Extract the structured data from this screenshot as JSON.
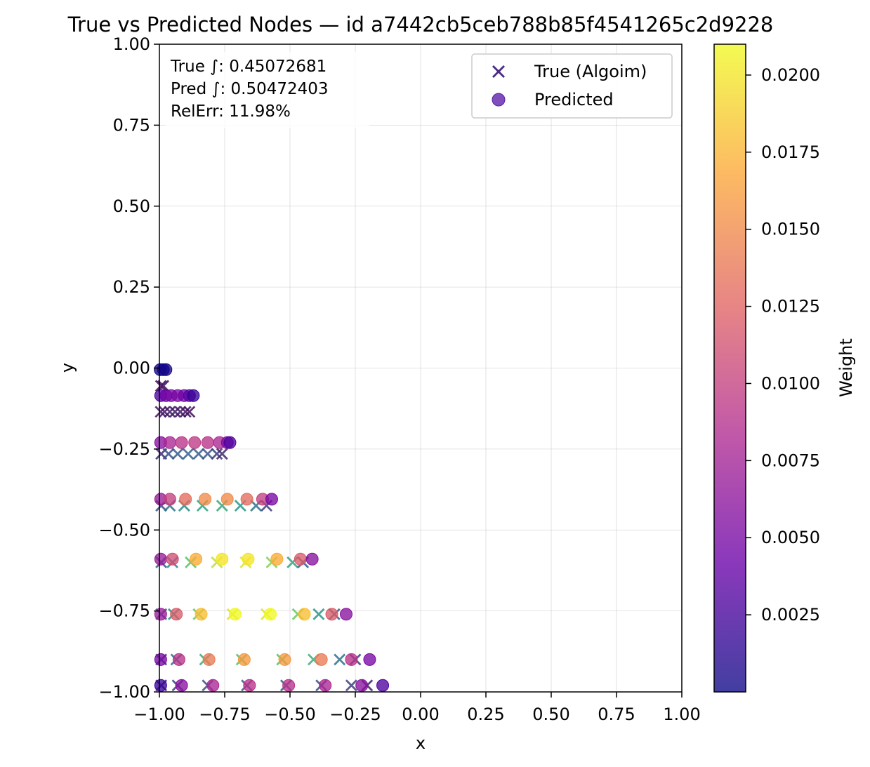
{
  "chart_data": {
    "type": "scatter",
    "title": "True vs Predicted Nodes — id a7442cb5ceb788b85f4541265c2d9228",
    "xlabel": "x",
    "ylabel": "y",
    "xlim": [
      -1.0,
      1.0
    ],
    "ylim": [
      -1.0,
      1.0
    ],
    "x_ticks": [
      "−1.00",
      "−0.75",
      "−0.50",
      "−0.25",
      "0.00",
      "0.25",
      "0.50",
      "0.75",
      "1.00"
    ],
    "y_ticks": [
      "−1.00",
      "−0.75",
      "−0.50",
      "−0.25",
      "0.00",
      "0.25",
      "0.50",
      "0.75",
      "1.00"
    ],
    "grid": true,
    "legend_position": "top-right",
    "legend": [
      "True (Algoim)",
      "Predicted"
    ],
    "annotation": [
      "True ∫: 0.45072681",
      "Pred ∫: 0.50472403",
      "RelErr: 11.98%"
    ],
    "colorbar": {
      "label": "Weight",
      "range": [
        0.0,
        0.021
      ],
      "ticks": [
        "0.0025",
        "0.0050",
        "0.0075",
        "0.0100",
        "0.0125",
        "0.0150",
        "0.0175",
        "0.0200"
      ],
      "tick_values": [
        0.0025,
        0.005,
        0.0075,
        0.01,
        0.0125,
        0.015,
        0.0175,
        0.02
      ],
      "colormap": [
        "#0d0887",
        "#6a00a8",
        "#b12a90",
        "#e16462",
        "#fca636",
        "#f0f921"
      ]
    },
    "series": [
      {
        "name": "True (Algoim)",
        "marker": "x",
        "colormap": [
          "#440154",
          "#3b528b",
          "#21918c",
          "#5ec962",
          "#fde725"
        ],
        "range": [
          0.0,
          0.021
        ],
        "points": [
          [
            -0.994,
            -0.055,
            0.0008
          ],
          [
            -0.985,
            -0.055,
            0.0009
          ],
          [
            -0.995,
            -0.135,
            0.0012
          ],
          [
            -0.98,
            -0.135,
            0.0014
          ],
          [
            -0.96,
            -0.135,
            0.0016
          ],
          [
            -0.94,
            -0.135,
            0.0016
          ],
          [
            -0.92,
            -0.135,
            0.0015
          ],
          [
            -0.9,
            -0.135,
            0.0012
          ],
          [
            -0.885,
            -0.135,
            0.0008
          ],
          [
            -0.993,
            -0.265,
            0.003
          ],
          [
            -0.965,
            -0.265,
            0.005
          ],
          [
            -0.93,
            -0.265,
            0.006
          ],
          [
            -0.89,
            -0.265,
            0.0065
          ],
          [
            -0.85,
            -0.265,
            0.0062
          ],
          [
            -0.815,
            -0.265,
            0.0055
          ],
          [
            -0.78,
            -0.265,
            0.004
          ],
          [
            -0.76,
            -0.265,
            0.0025
          ],
          [
            -0.993,
            -0.425,
            0.005
          ],
          [
            -0.96,
            -0.425,
            0.008
          ],
          [
            -0.905,
            -0.425,
            0.01
          ],
          [
            -0.835,
            -0.425,
            0.012
          ],
          [
            -0.76,
            -0.425,
            0.0125
          ],
          [
            -0.69,
            -0.425,
            0.011
          ],
          [
            -0.63,
            -0.425,
            0.008
          ],
          [
            -0.59,
            -0.425,
            0.004
          ],
          [
            -0.993,
            -0.6,
            0.006
          ],
          [
            -0.95,
            -0.6,
            0.01
          ],
          [
            -0.88,
            -0.6,
            0.015
          ],
          [
            -0.78,
            -0.6,
            0.019
          ],
          [
            -0.67,
            -0.6,
            0.02
          ],
          [
            -0.57,
            -0.6,
            0.017
          ],
          [
            -0.49,
            -0.6,
            0.012
          ],
          [
            -0.45,
            -0.6,
            0.006
          ],
          [
            -0.993,
            -0.76,
            0.006
          ],
          [
            -0.945,
            -0.76,
            0.011
          ],
          [
            -0.85,
            -0.76,
            0.016
          ],
          [
            -0.72,
            -0.76,
            0.02
          ],
          [
            -0.59,
            -0.76,
            0.02
          ],
          [
            -0.47,
            -0.76,
            0.016
          ],
          [
            -0.39,
            -0.76,
            0.011
          ],
          [
            -0.33,
            -0.76,
            0.006
          ],
          [
            -0.993,
            -0.9,
            0.004
          ],
          [
            -0.935,
            -0.9,
            0.008
          ],
          [
            -0.825,
            -0.9,
            0.013
          ],
          [
            -0.685,
            -0.9,
            0.015
          ],
          [
            -0.53,
            -0.9,
            0.015
          ],
          [
            -0.41,
            -0.9,
            0.013
          ],
          [
            -0.31,
            -0.9,
            0.008
          ],
          [
            -0.25,
            -0.9,
            0.004
          ],
          [
            -0.993,
            -0.98,
            0.002
          ],
          [
            -0.93,
            -0.98,
            0.004
          ],
          [
            -0.815,
            -0.98,
            0.005
          ],
          [
            -0.665,
            -0.98,
            0.0055
          ],
          [
            -0.515,
            -0.98,
            0.0055
          ],
          [
            -0.38,
            -0.98,
            0.005
          ],
          [
            -0.265,
            -0.98,
            0.004
          ],
          [
            -0.205,
            -0.98,
            0.002
          ]
        ]
      },
      {
        "name": "Predicted",
        "marker": "o",
        "colormap": [
          "#0d0887",
          "#6a00a8",
          "#b12a90",
          "#e16462",
          "#fca636",
          "#f0f921"
        ],
        "range": [
          0.0,
          0.021
        ],
        "points": [
          [
            -0.997,
            -0.005,
            0.0003
          ],
          [
            -0.985,
            -0.005,
            0.0004
          ],
          [
            -0.975,
            -0.005,
            0.0003
          ],
          [
            -0.995,
            -0.085,
            0.003
          ],
          [
            -0.975,
            -0.085,
            0.0045
          ],
          [
            -0.955,
            -0.085,
            0.005
          ],
          [
            -0.93,
            -0.085,
            0.005
          ],
          [
            -0.905,
            -0.085,
            0.0045
          ],
          [
            -0.885,
            -0.085,
            0.0035
          ],
          [
            -0.87,
            -0.085,
            0.002
          ],
          [
            -0.995,
            -0.23,
            0.006
          ],
          [
            -0.96,
            -0.23,
            0.008
          ],
          [
            -0.915,
            -0.23,
            0.009
          ],
          [
            -0.865,
            -0.23,
            0.0095
          ],
          [
            -0.815,
            -0.23,
            0.009
          ],
          [
            -0.77,
            -0.23,
            0.008
          ],
          [
            -0.74,
            -0.23,
            0.0055
          ],
          [
            -0.73,
            -0.23,
            0.003
          ],
          [
            -0.995,
            -0.405,
            0.007
          ],
          [
            -0.96,
            -0.405,
            0.01
          ],
          [
            -0.9,
            -0.405,
            0.013
          ],
          [
            -0.825,
            -0.405,
            0.015
          ],
          [
            -0.74,
            -0.405,
            0.015
          ],
          [
            -0.665,
            -0.405,
            0.013
          ],
          [
            -0.605,
            -0.405,
            0.01
          ],
          [
            -0.57,
            -0.405,
            0.005
          ],
          [
            -0.995,
            -0.59,
            0.007
          ],
          [
            -0.95,
            -0.59,
            0.011
          ],
          [
            -0.86,
            -0.59,
            0.017
          ],
          [
            -0.76,
            -0.59,
            0.02
          ],
          [
            -0.66,
            -0.59,
            0.02
          ],
          [
            -0.55,
            -0.59,
            0.017
          ],
          [
            -0.46,
            -0.59,
            0.012
          ],
          [
            -0.415,
            -0.59,
            0.006
          ],
          [
            -0.995,
            -0.76,
            0.007
          ],
          [
            -0.935,
            -0.76,
            0.012
          ],
          [
            -0.84,
            -0.76,
            0.018
          ],
          [
            -0.71,
            -0.76,
            0.021
          ],
          [
            -0.575,
            -0.76,
            0.021
          ],
          [
            -0.445,
            -0.76,
            0.018
          ],
          [
            -0.34,
            -0.76,
            0.012
          ],
          [
            -0.285,
            -0.76,
            0.006
          ],
          [
            -0.995,
            -0.9,
            0.005
          ],
          [
            -0.925,
            -0.9,
            0.009
          ],
          [
            -0.81,
            -0.9,
            0.014
          ],
          [
            -0.675,
            -0.9,
            0.016
          ],
          [
            -0.52,
            -0.9,
            0.016
          ],
          [
            -0.38,
            -0.9,
            0.014
          ],
          [
            -0.265,
            -0.9,
            0.009
          ],
          [
            -0.195,
            -0.9,
            0.005
          ],
          [
            -0.995,
            -0.98,
            0.002
          ],
          [
            -0.915,
            -0.98,
            0.006
          ],
          [
            -0.795,
            -0.98,
            0.008
          ],
          [
            -0.655,
            -0.98,
            0.009
          ],
          [
            -0.505,
            -0.98,
            0.009
          ],
          [
            -0.365,
            -0.98,
            0.008
          ],
          [
            -0.225,
            -0.98,
            0.006
          ],
          [
            -0.145,
            -0.98,
            0.003
          ]
        ]
      }
    ]
  }
}
